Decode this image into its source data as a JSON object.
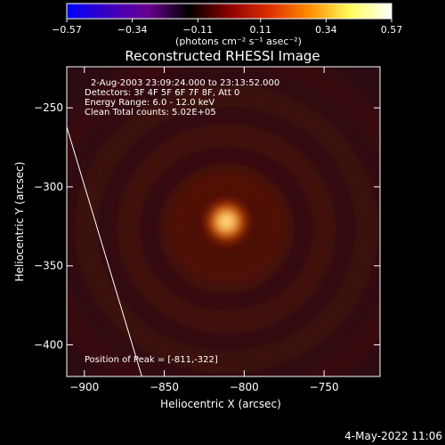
{
  "colorbar": {
    "ticks": [
      "-0.57",
      "-0.34",
      "-0.11",
      "0.11",
      "0.34",
      "0.57"
    ],
    "min": -0.57,
    "max": 0.57,
    "units": "(photons cm⁻² s⁻¹ asec⁻²)",
    "stops": [
      "#0000ff",
      "#3a00c0",
      "#6a0090",
      "#000000",
      "#8a0000",
      "#e03000",
      "#ff9000",
      "#ffff60",
      "#ffffff"
    ]
  },
  "chart_data": {
    "type": "heatmap",
    "title": "Reconstructed RHESSI Image",
    "xlabel": "Heliocentric X (arcsec)",
    "ylabel": "Heliocentric Y (arcsec)",
    "xlim": [
      -911,
      -715
    ],
    "ylim": [
      -420,
      -224
    ],
    "x_ticks": [
      {
        "value": -900,
        "label": "−900"
      },
      {
        "value": -850,
        "label": "−850"
      },
      {
        "value": -800,
        "label": "−800"
      },
      {
        "value": -750,
        "label": "−750"
      }
    ],
    "y_ticks": [
      {
        "value": -250,
        "label": "−250"
      },
      {
        "value": -300,
        "label": "−300"
      },
      {
        "value": -350,
        "label": "−350"
      },
      {
        "value": -400,
        "label": "−400"
      }
    ],
    "source": {
      "x": -811,
      "y": -322,
      "peak": 0.57
    },
    "limb_line": {
      "x": [
        -911,
        -864
      ],
      "y": [
        -262,
        -420
      ]
    },
    "annotations": [
      "2-Aug-2003 23:09:24.000 to 23:13:52.000",
      "Detectors: 3F 4F 5F 6F 7F 8F, Att 0",
      "Energy Range: 6.0 - 12.0 keV",
      "Clean     Total counts: 5.02E+05"
    ],
    "peak_label": "Position of Peak = [-811,-322]"
  },
  "footer": {
    "date": "4-May-2022 11:06"
  }
}
